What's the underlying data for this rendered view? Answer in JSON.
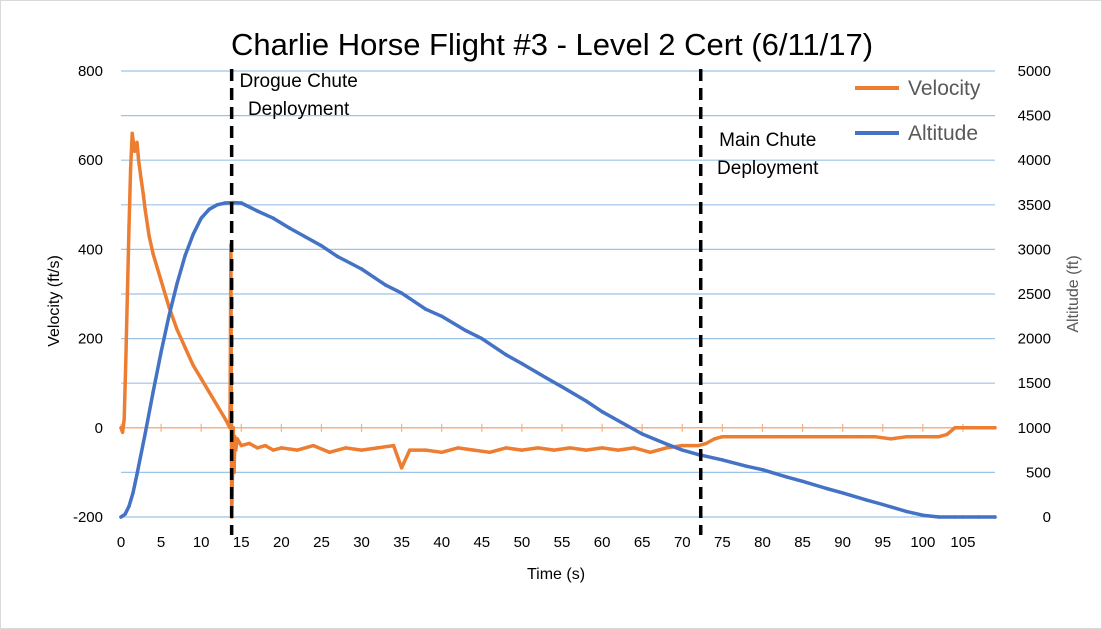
{
  "chart_data": {
    "type": "line",
    "title": "Charlie Horse Flight #3 - Level 2 Cert (6/11/17)",
    "xlabel": "Time (s)",
    "ylabel": "Velocity (ft/s)",
    "y2label": "Altitude (ft)",
    "xlim": [
      0,
      109
    ],
    "ylim": [
      -200,
      800
    ],
    "y2lim": [
      0,
      5000
    ],
    "x_ticks": [
      "0",
      "5",
      "10",
      "15",
      "20",
      "25",
      "30",
      "35",
      "40",
      "45",
      "50",
      "55",
      "60",
      "65",
      "70",
      "75",
      "80",
      "85",
      "90",
      "95",
      "100",
      "105"
    ],
    "y_ticks": [
      "-200",
      "0",
      "200",
      "400",
      "600",
      "800"
    ],
    "y2_ticks": [
      "0",
      "500",
      "1000",
      "1500",
      "2000",
      "2500",
      "3000",
      "3500",
      "4000",
      "4500",
      "5000"
    ],
    "legend_position": "top-right",
    "grid": true,
    "series": [
      {
        "name": "Velocity",
        "axis": "left",
        "color": "#ED7D31",
        "x": [
          0,
          0.2,
          0.4,
          0.6,
          0.8,
          1.0,
          1.2,
          1.4,
          1.7,
          2.0,
          2.2,
          2.5,
          2.8,
          3.0,
          3.5,
          4,
          5,
          6,
          7,
          8,
          9,
          10,
          11,
          12,
          13,
          13.6,
          13.7,
          13.8,
          13.9,
          14.0,
          14.1,
          14.2,
          14.3,
          14.5,
          15,
          16,
          17,
          18,
          19,
          20,
          22,
          24,
          26,
          28,
          30,
          32,
          34,
          35,
          36,
          38,
          40,
          42,
          44,
          46,
          48,
          50,
          52,
          54,
          56,
          58,
          60,
          62,
          64,
          66,
          68,
          70,
          72,
          73,
          74,
          75,
          76,
          78,
          80,
          82,
          84,
          86,
          88,
          90,
          92,
          94,
          96,
          98,
          100,
          102,
          103,
          104,
          105,
          107,
          109
        ],
        "values": [
          0,
          -10,
          20,
          150,
          300,
          450,
          580,
          660,
          620,
          640,
          600,
          560,
          520,
          490,
          430,
          390,
          330,
          270,
          220,
          180,
          140,
          110,
          80,
          50,
          20,
          0,
          410,
          -200,
          -100,
          0,
          -100,
          -20,
          -50,
          -25,
          -40,
          -35,
          -45,
          -40,
          -50,
          -45,
          -50,
          -40,
          -55,
          -45,
          -50,
          -45,
          -40,
          -90,
          -50,
          -50,
          -55,
          -45,
          -50,
          -55,
          -45,
          -50,
          -45,
          -50,
          -45,
          -50,
          -45,
          -50,
          -45,
          -55,
          -45,
          -40,
          -40,
          -35,
          -25,
          -20,
          -20,
          -20,
          -20,
          -20,
          -20,
          -20,
          -20,
          -20,
          -20,
          -20,
          -25,
          -20,
          -20,
          -20,
          -15,
          0,
          0,
          0,
          0
        ]
      },
      {
        "name": "Altitude",
        "axis": "right",
        "color": "#4472C4",
        "x": [
          0,
          0.5,
          1,
          1.5,
          2,
          3,
          4,
          5,
          6,
          7,
          8,
          9,
          10,
          11,
          12,
          13,
          14,
          15,
          17,
          19,
          21,
          23,
          25,
          27,
          30,
          33,
          35,
          38,
          40,
          43,
          45,
          48,
          50,
          53,
          55,
          58,
          60,
          63,
          65,
          68,
          70,
          72,
          73,
          75,
          78,
          80,
          83,
          85,
          88,
          90,
          93,
          95,
          98,
          100,
          102,
          104,
          105,
          107,
          109
        ],
        "values": [
          0,
          30,
          120,
          270,
          480,
          930,
          1400,
          1850,
          2260,
          2620,
          2930,
          3170,
          3350,
          3450,
          3500,
          3520,
          3525,
          3520,
          3430,
          3350,
          3240,
          3140,
          3040,
          2920,
          2780,
          2600,
          2510,
          2330,
          2250,
          2090,
          2000,
          1820,
          1720,
          1560,
          1460,
          1300,
          1180,
          1030,
          930,
          820,
          750,
          700,
          680,
          640,
          570,
          530,
          450,
          400,
          320,
          270,
          190,
          140,
          60,
          20,
          0,
          0,
          0,
          0,
          0
        ]
      }
    ],
    "annotations": [
      {
        "x": 13.8,
        "line1": "Drogue Chute",
        "line2": "Deployment"
      },
      {
        "x": 72.3,
        "line1": "Main Chute",
        "line2": "Deployment"
      }
    ]
  }
}
